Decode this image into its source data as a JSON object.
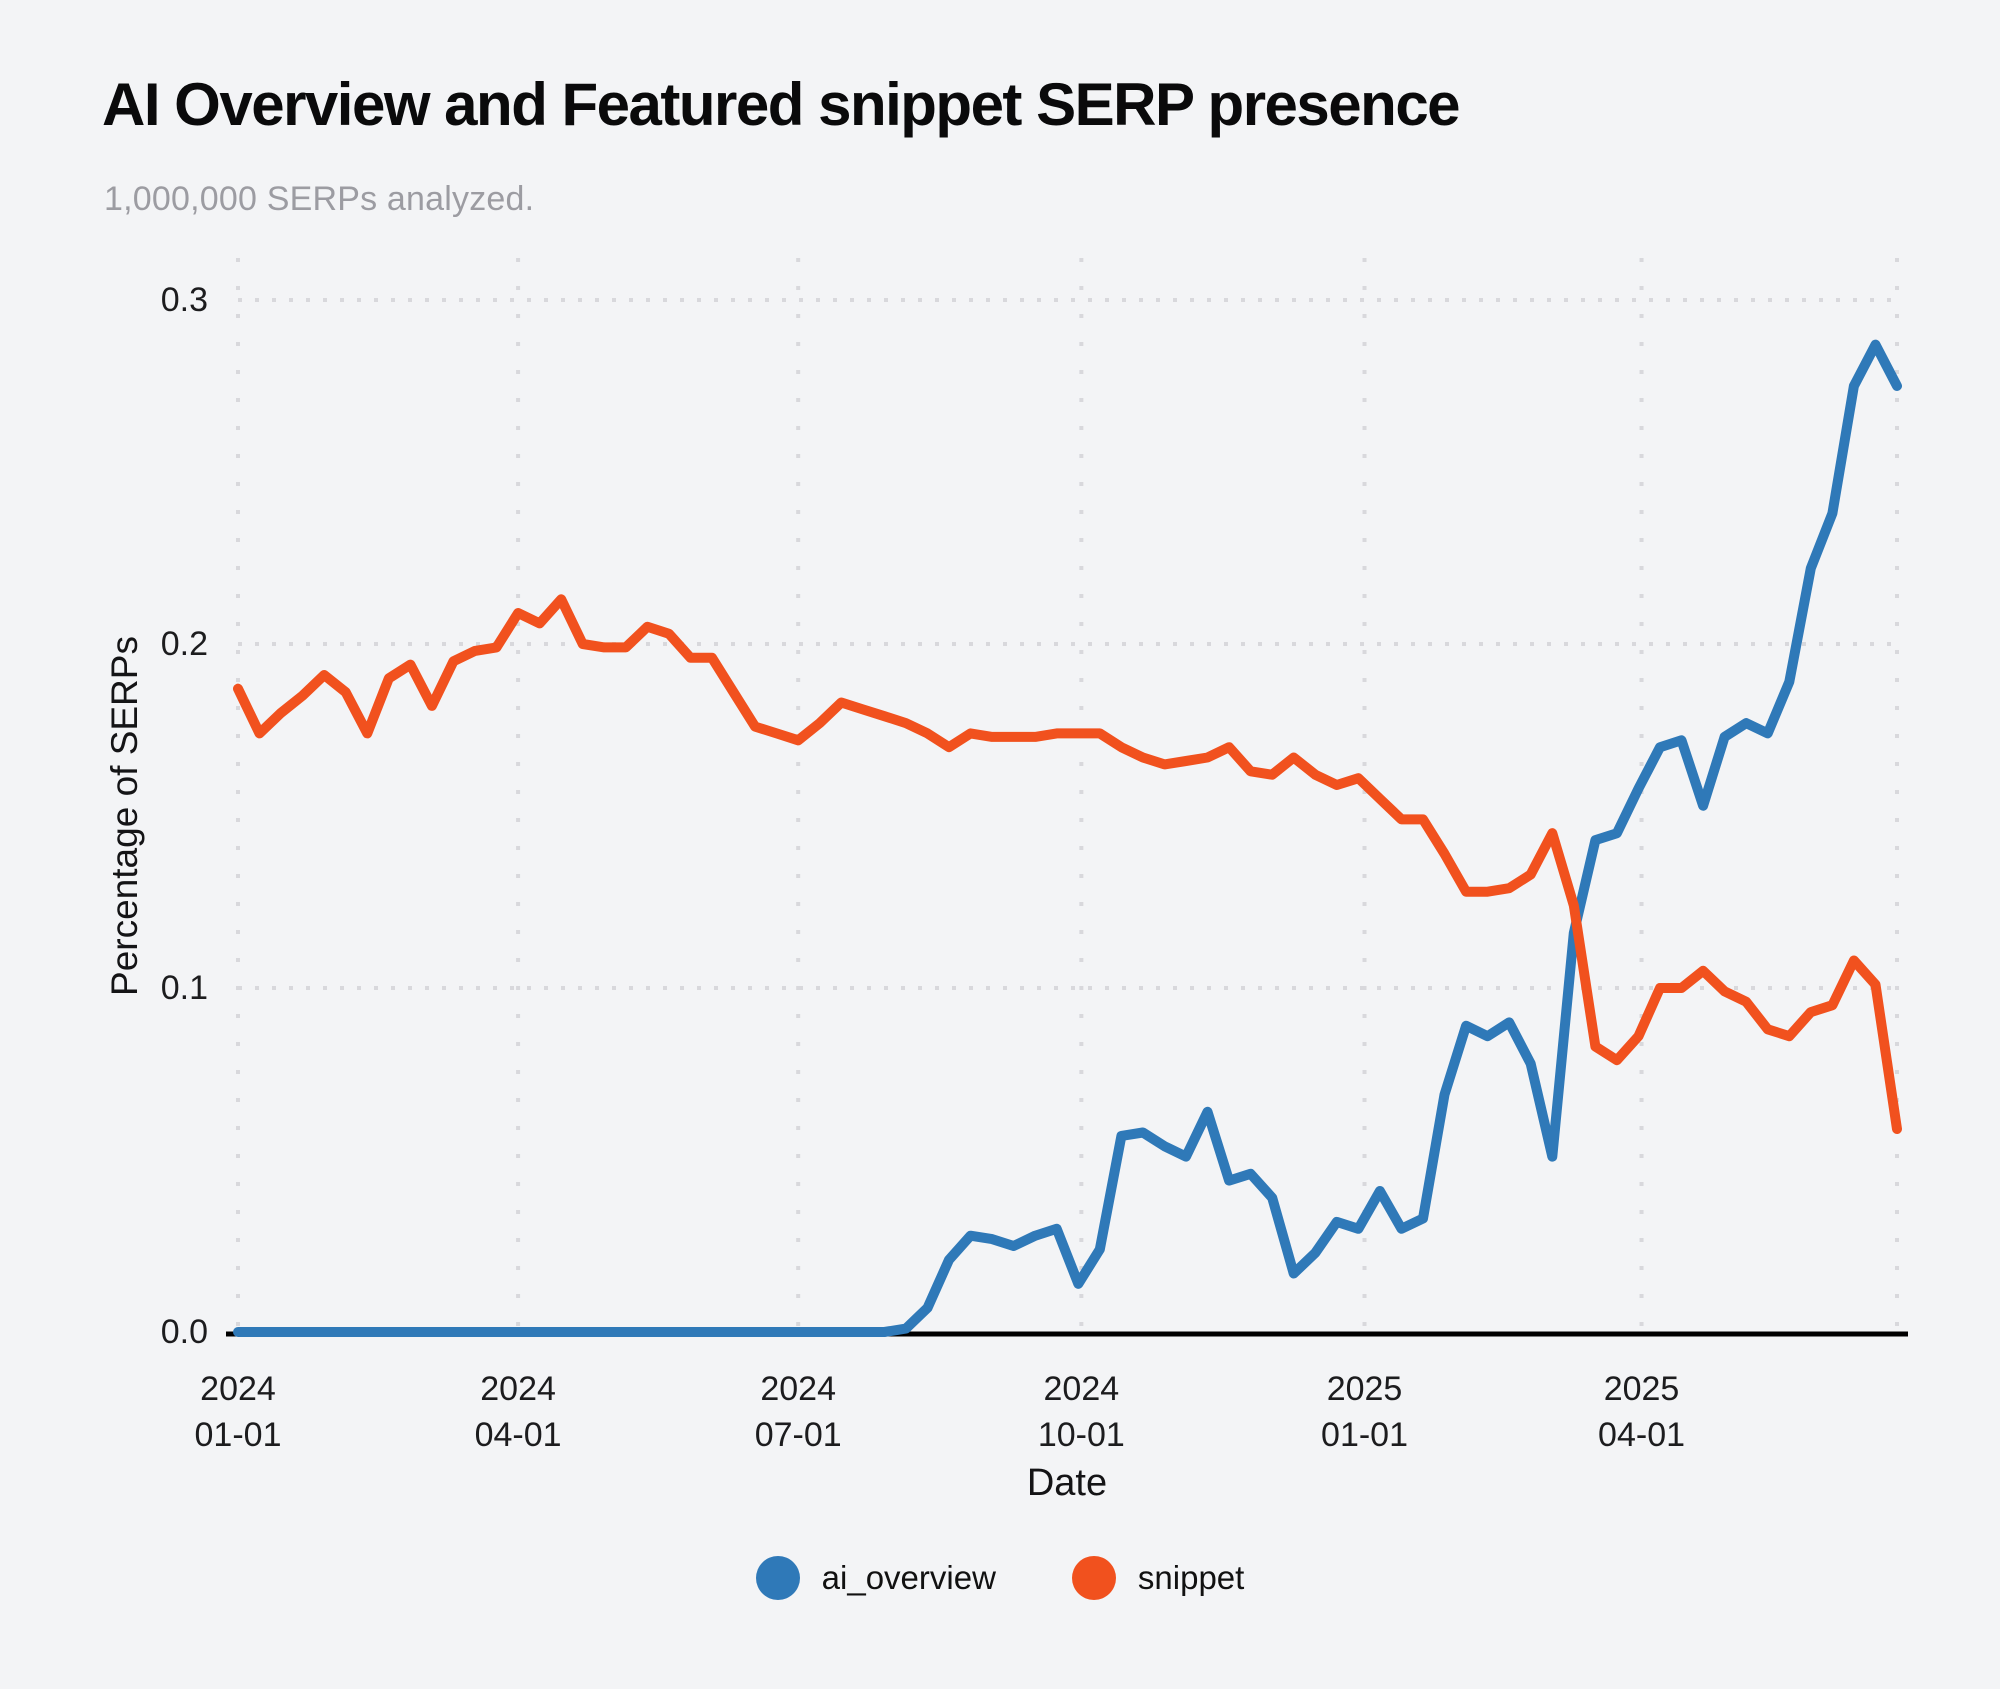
{
  "page": {
    "background": "#f3f4f6"
  },
  "header": {
    "title": "AI Overview and Featured snippet SERP presence",
    "subtitle": "1,000,000 SERPs analyzed."
  },
  "chart_data": {
    "type": "line",
    "title": "AI Overview and Featured snippet SERP presence",
    "subtitle": "1,000,000 SERPs analyzed.",
    "xlabel": "Date",
    "ylabel": "Percentage of SERPs",
    "ylim": [
      0,
      0.3
    ],
    "grid": "dotted",
    "grid_color": "#d8d8dc",
    "axis_color": "#000000",
    "legend_position": "bottom",
    "x_start_date": "2024-01-01",
    "x_interval_days": 7,
    "x_span_days": 539,
    "yticks": [
      {
        "value": 0.0,
        "label": "0.0"
      },
      {
        "value": 0.1,
        "label": "0.1"
      },
      {
        "value": 0.2,
        "label": "0.2"
      },
      {
        "value": 0.3,
        "label": "0.3"
      }
    ],
    "xticks": [
      {
        "day": 0,
        "line1": "2024",
        "line2": "01-01"
      },
      {
        "day": 91,
        "line1": "2024",
        "line2": "04-01"
      },
      {
        "day": 182,
        "line1": "2024",
        "line2": "07-01"
      },
      {
        "day": 274,
        "line1": "2024",
        "line2": "10-01"
      },
      {
        "day": 366,
        "line1": "2025",
        "line2": "01-01"
      },
      {
        "day": 456,
        "line1": "2025",
        "line2": "04-01"
      }
    ],
    "series": [
      {
        "name": "ai_overview",
        "color": "#2f79b8",
        "values": [
          0,
          0,
          0,
          0,
          0,
          0,
          0,
          0,
          0,
          0,
          0,
          0,
          0,
          0,
          0,
          0,
          0,
          0,
          0,
          0,
          0,
          0,
          0,
          0,
          0,
          0,
          0,
          0,
          0,
          0,
          0,
          0.001,
          0.007,
          0.021,
          0.028,
          0.027,
          0.025,
          0.028,
          0.03,
          0.014,
          0.024,
          0.057,
          0.058,
          0.054,
          0.051,
          0.064,
          0.044,
          0.046,
          0.039,
          0.017,
          0.023,
          0.032,
          0.03,
          0.041,
          0.03,
          0.033,
          0.069,
          0.089,
          0.086,
          0.09,
          0.078,
          0.051,
          0.116,
          0.143,
          0.145,
          0.158,
          0.17,
          0.172,
          0.153,
          0.173,
          0.177,
          0.174,
          0.189,
          0.222,
          0.238,
          0.275,
          0.287,
          0.275
        ]
      },
      {
        "name": "snippet",
        "color": "#f1511e",
        "values": [
          0.187,
          0.174,
          0.18,
          0.185,
          0.191,
          0.186,
          0.174,
          0.19,
          0.194,
          0.182,
          0.195,
          0.198,
          0.199,
          0.209,
          0.206,
          0.213,
          0.2,
          0.199,
          0.199,
          0.205,
          0.203,
          0.196,
          0.196,
          0.186,
          0.176,
          0.174,
          0.172,
          0.177,
          0.183,
          0.181,
          0.179,
          0.177,
          0.174,
          0.17,
          0.174,
          0.173,
          0.173,
          0.173,
          0.174,
          0.174,
          0.174,
          0.17,
          0.167,
          0.165,
          0.166,
          0.167,
          0.17,
          0.163,
          0.162,
          0.167,
          0.162,
          0.159,
          0.161,
          0.155,
          0.149,
          0.149,
          0.139,
          0.128,
          0.128,
          0.129,
          0.133,
          0.145,
          0.124,
          0.083,
          0.079,
          0.086,
          0.1,
          0.1,
          0.105,
          0.099,
          0.096,
          0.088,
          0.086,
          0.093,
          0.095,
          0.108,
          0.101,
          0.059
        ]
      }
    ]
  }
}
